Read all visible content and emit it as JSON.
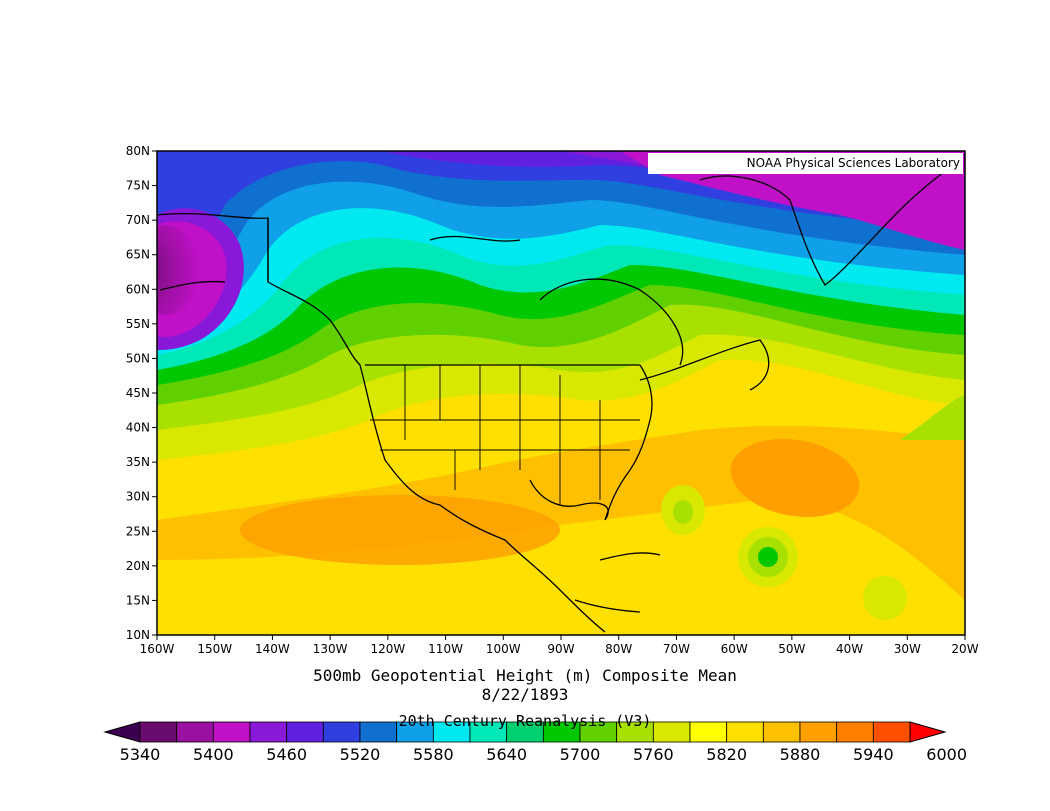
{
  "map": {
    "credit": "NOAA Physical Sciences Laboratory",
    "title": "500mb Geopotential Height (m) Composite Mean",
    "date": "8/22/1893",
    "source": "20th Century Reanalysis (V3)",
    "lat_labels": [
      "80N",
      "75N",
      "70N",
      "65N",
      "60N",
      "55N",
      "50N",
      "45N",
      "40N",
      "35N",
      "30N",
      "25N",
      "20N",
      "15N",
      "10N"
    ],
    "lon_labels": [
      "160W",
      "150W",
      "140W",
      "130W",
      "120W",
      "110W",
      "100W",
      "90W",
      "80W",
      "70W",
      "60W",
      "50W",
      "40W",
      "30W",
      "20W"
    ],
    "extent": {
      "lat_min": 10,
      "lat_max": 80,
      "lon_min": -160,
      "lon_max": -20
    }
  },
  "colorbar": {
    "labels": [
      "5340",
      "5400",
      "5460",
      "5520",
      "5580",
      "5640",
      "5700",
      "5760",
      "5820",
      "5880",
      "5940",
      "6000"
    ],
    "colors": [
      "#3c0050",
      "#6a0b70",
      "#9a10a0",
      "#c010c8",
      "#8a18d8",
      "#6020e0",
      "#3040e0",
      "#1070d0",
      "#10a0e8",
      "#00e8f0",
      "#00e8b8",
      "#00d070",
      "#00c800",
      "#60d000",
      "#a8e000",
      "#d8e800",
      "#ffff00",
      "#ffe000",
      "#ffc000",
      "#ffa000",
      "#ff8000",
      "#ff5000",
      "#ff0000"
    ]
  }
}
